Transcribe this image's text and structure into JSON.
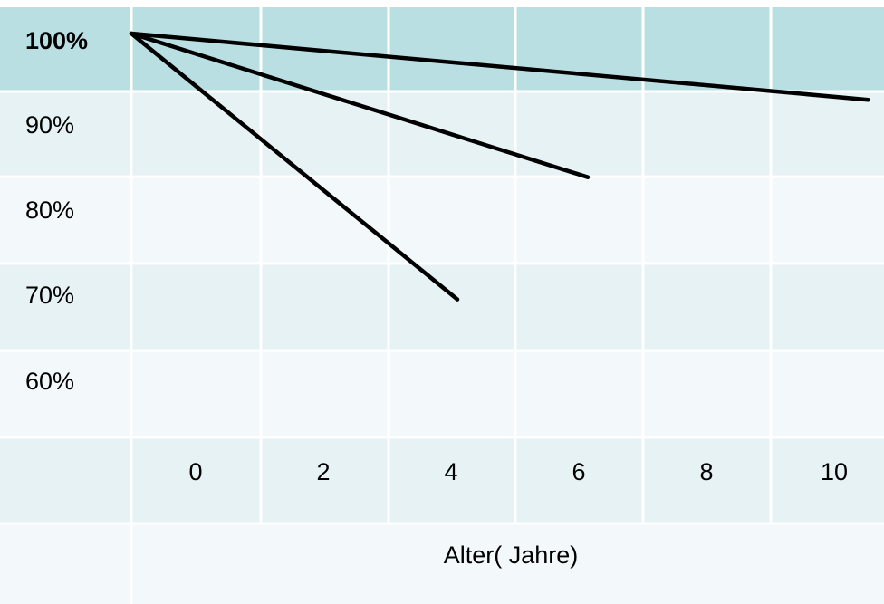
{
  "chart_data": {
    "type": "line",
    "title": "",
    "ylabel": "",
    "xlabel": "Alter( Jahre)",
    "y_tick_labels": [
      "100%",
      "90%",
      "80%",
      "70%",
      "60%"
    ],
    "x_tick_labels": [
      "0",
      "2",
      "4",
      "6",
      "8",
      "10"
    ],
    "xlim": [
      0,
      10
    ],
    "ylim": [
      60,
      100
    ],
    "grid": true,
    "colors": {
      "header_row": "#b9dfe3",
      "band_dark": "#e6f2f4",
      "band_light": "#f3f8fa",
      "grid_line": "#ffffff",
      "series_line": "#000000"
    },
    "series": [
      {
        "values": [
          {
            "x": 0,
            "y": 100
          },
          {
            "x": 11.3,
            "y": 92.3
          }
        ]
      },
      {
        "values": [
          {
            "x": 0,
            "y": 100
          },
          {
            "x": 7.0,
            "y": 83.3
          }
        ]
      },
      {
        "values": [
          {
            "x": 0,
            "y": 100
          },
          {
            "x": 5.0,
            "y": 69.1
          }
        ]
      }
    ]
  }
}
